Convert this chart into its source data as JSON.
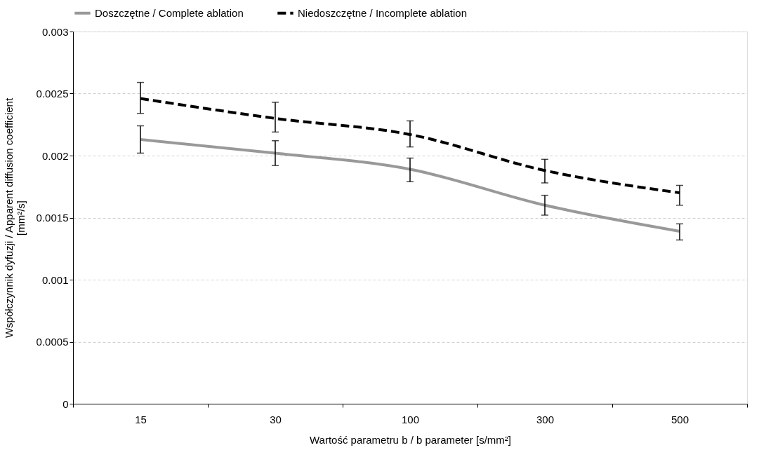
{
  "chart_data": {
    "type": "line",
    "xlabel": "Wartość parametru b / b parameter [s/mm²]",
    "ylabel": "Współczynnik dyfuzji / Apparent diffusion coefficient\n[mm²/s]",
    "categories": [
      "15",
      "30",
      "100",
      "300",
      "500"
    ],
    "ylim": [
      0,
      0.003
    ],
    "yticks": [
      0,
      0.0005,
      0.001,
      0.0015,
      0.002,
      0.0025,
      0.003
    ],
    "grid": "y",
    "legend": "top",
    "marker": "none",
    "series": [
      {
        "name": "Doszczętne / Complete ablation",
        "color": "#999999",
        "line_style": "solid",
        "values": [
          0.00213,
          0.00202,
          0.00189,
          0.0016,
          0.00139
        ],
        "errors": [
          [
            0.00202,
            0.00224
          ],
          [
            0.00192,
            0.00212
          ],
          [
            0.00179,
            0.00198
          ],
          [
            0.00152,
            0.00168
          ],
          [
            0.00132,
            0.00145
          ]
        ]
      },
      {
        "name": "Niedoszczętne / Incomplete ablation",
        "color": "#000000",
        "line_style": "dashed",
        "values": [
          0.00246,
          0.0023,
          0.00217,
          0.00188,
          0.0017
        ],
        "errors": [
          [
            0.00234,
            0.00259
          ],
          [
            0.00219,
            0.00243
          ],
          [
            0.00207,
            0.00228
          ],
          [
            0.00178,
            0.00197
          ],
          [
            0.0016,
            0.00176
          ]
        ]
      }
    ]
  }
}
